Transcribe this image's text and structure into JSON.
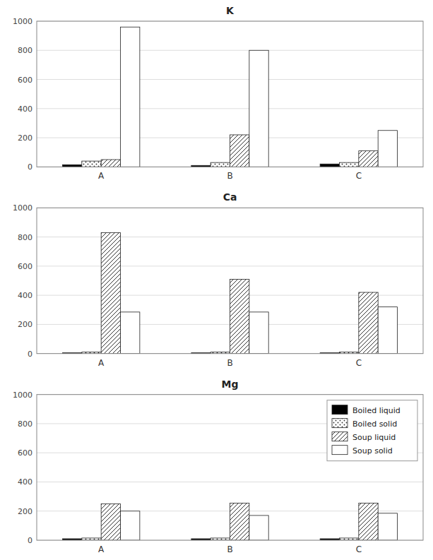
{
  "chart_data": [
    {
      "type": "bar",
      "title": "K",
      "categories": [
        "A",
        "B",
        "C"
      ],
      "series": [
        {
          "name": "Boiled liquid",
          "color": "#000000",
          "values": [
            15,
            10,
            20
          ]
        },
        {
          "name": "Boiled solid",
          "color": "#ffffff",
          "values": [
            40,
            30,
            30
          ]
        },
        {
          "name": "Soup liquid",
          "color": "#ffffff",
          "values": [
            50,
            220,
            110
          ]
        },
        {
          "name": "Soup solid",
          "color": "#ffffff",
          "values": [
            960,
            800,
            250
          ]
        }
      ],
      "ylim": [
        0,
        1000
      ],
      "yticks": [
        0,
        200,
        400,
        600,
        800,
        1000
      ],
      "grid": true
    },
    {
      "type": "bar",
      "title": "Ca",
      "categories": [
        "A",
        "B",
        "C"
      ],
      "series": [
        {
          "name": "Boiled liquid",
          "color": "#000000",
          "values": [
            5,
            5,
            5
          ]
        },
        {
          "name": "Boiled solid",
          "color": "#ffffff",
          "values": [
            10,
            10,
            10
          ]
        },
        {
          "name": "Soup liquid",
          "color": "#ffffff",
          "values": [
            830,
            510,
            420
          ]
        },
        {
          "name": "Soup solid",
          "color": "#ffffff",
          "values": [
            285,
            285,
            320
          ]
        }
      ],
      "ylim": [
        0,
        1000
      ],
      "yticks": [
        0,
        200,
        400,
        600,
        800,
        1000
      ],
      "grid": true
    },
    {
      "type": "bar",
      "title": "Mg",
      "categories": [
        "A",
        "B",
        "C"
      ],
      "series": [
        {
          "name": "Boiled liquid",
          "color": "#000000",
          "values": [
            10,
            10,
            10
          ]
        },
        {
          "name": "Boiled solid",
          "color": "#ffffff",
          "values": [
            15,
            15,
            15
          ]
        },
        {
          "name": "Soup liquid",
          "color": "#ffffff",
          "values": [
            250,
            255,
            255
          ]
        },
        {
          "name": "Soup solid",
          "color": "#ffffff",
          "values": [
            200,
            170,
            185
          ]
        }
      ],
      "ylim": [
        0,
        1000
      ],
      "yticks": [
        0,
        200,
        400,
        600,
        800,
        1000
      ],
      "grid": true,
      "legend": "upper right"
    }
  ]
}
